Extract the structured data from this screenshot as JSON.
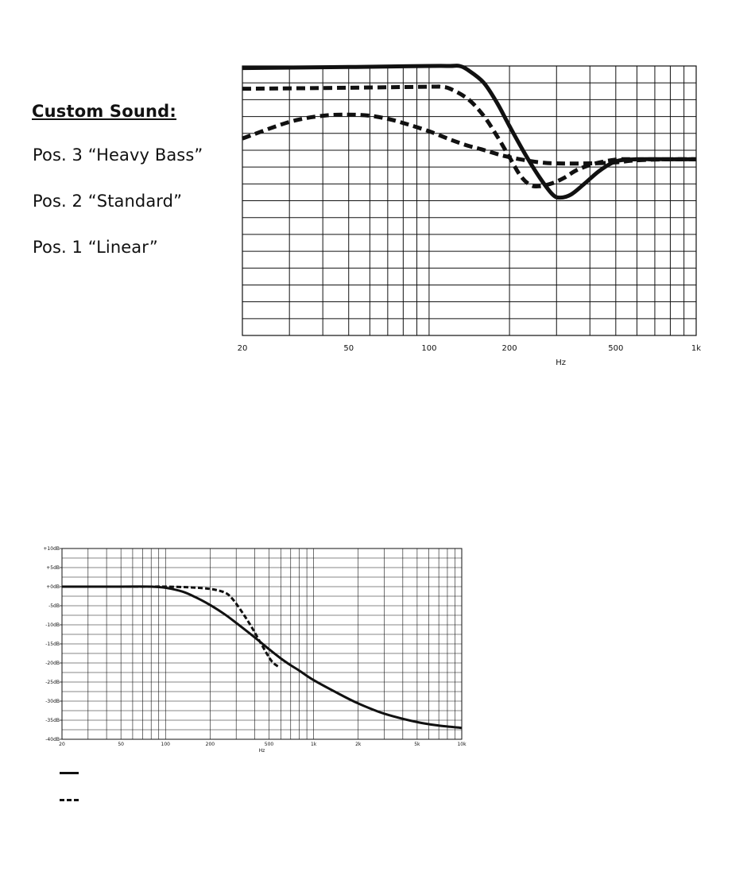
{
  "legend": {
    "title": "Custom Sound:",
    "entries": [
      "Pos. 3 “Heavy Bass”",
      "Pos. 2 “Standard”",
      "Pos. 1 “Linear”"
    ]
  },
  "chart_data": [
    {
      "type": "line",
      "xscale": "log",
      "xlim": [
        20,
        1000
      ],
      "ylim": [
        0,
        13
      ],
      "xticks": [
        20,
        50,
        100,
        200,
        500,
        1000
      ],
      "xtick_labels": [
        "20",
        "50",
        "100",
        "200",
        "500",
        "1k"
      ],
      "xlabel": "Hz",
      "grid": true,
      "series": [
        {
          "style": "solid",
          "x": [
            20,
            50,
            100,
            120,
            130,
            140,
            160,
            180,
            200,
            230,
            260,
            290,
            310,
            340,
            380,
            430,
            480,
            520,
            600,
            800,
            1000
          ],
          "y": [
            12.9,
            12.95,
            13.0,
            13.0,
            13.0,
            12.8,
            12.2,
            11.2,
            10.1,
            8.7,
            7.6,
            6.8,
            6.65,
            6.8,
            7.3,
            7.9,
            8.3,
            8.45,
            8.5,
            8.5,
            8.5
          ]
        },
        {
          "style": "dashed",
          "x": [
            20,
            50,
            100,
            110,
            120,
            140,
            160,
            180,
            200,
            220,
            240,
            260,
            290,
            320,
            360,
            420,
            480,
            520,
            600,
            800,
            1000
          ],
          "y": [
            11.9,
            11.95,
            12.0,
            12.0,
            11.9,
            11.4,
            10.6,
            9.6,
            8.6,
            7.7,
            7.25,
            7.2,
            7.35,
            7.6,
            8.0,
            8.3,
            8.45,
            8.5,
            8.5,
            8.5,
            8.5
          ]
        },
        {
          "style": "dashed",
          "x": [
            20,
            30,
            40,
            50,
            60,
            70,
            80,
            100,
            120,
            140,
            160,
            180,
            200,
            230,
            260,
            300,
            400,
            500,
            600,
            800,
            1000
          ],
          "y": [
            9.5,
            10.3,
            10.6,
            10.65,
            10.6,
            10.45,
            10.25,
            9.85,
            9.45,
            9.15,
            8.95,
            8.75,
            8.6,
            8.45,
            8.35,
            8.3,
            8.3,
            8.35,
            8.45,
            8.5,
            8.5
          ]
        }
      ]
    },
    {
      "type": "line",
      "xscale": "log",
      "xlim": [
        20,
        10000
      ],
      "ylim": [
        -40,
        10
      ],
      "xticks": [
        20,
        50,
        100,
        200,
        500,
        1000,
        2000,
        5000,
        10000
      ],
      "xtick_labels": [
        "20",
        "50",
        "100",
        "200",
        "500",
        "1k",
        "2k",
        "5k",
        "10k"
      ],
      "yticks": [
        10,
        5,
        0,
        -5,
        -10,
        -15,
        -20,
        -25,
        -30,
        -35,
        -40
      ],
      "ytick_labels": [
        "+10dB",
        "+5dB",
        "+0dB",
        "-5dB",
        "-10dB",
        "-15dB",
        "-20dB",
        "-25dB",
        "-30dB",
        "-35dB",
        "-40dB"
      ],
      "xlabel": "Hz",
      "grid": true,
      "series": [
        {
          "style": "solid",
          "x": [
            20,
            50,
            80,
            100,
            130,
            160,
            200,
            250,
            300,
            400,
            500,
            600,
            700,
            800,
            1000,
            1500,
            2000,
            3000,
            5000,
            7000,
            10000
          ],
          "y": [
            0,
            0,
            0,
            -0.3,
            -1.3,
            -2.8,
            -4.8,
            -7.2,
            -9.5,
            -13.3,
            -16.4,
            -18.8,
            -20.6,
            -22.0,
            -24.5,
            -28.2,
            -30.6,
            -33.3,
            -35.5,
            -36.4,
            -37.0
          ]
        },
        {
          "style": "dashed",
          "x": [
            20,
            50,
            80,
            100,
            150,
            200,
            250,
            280,
            320,
            380,
            450,
            520,
            580
          ],
          "y": [
            0,
            0,
            0,
            0,
            -0.2,
            -0.6,
            -1.5,
            -3.0,
            -6.0,
            -10.5,
            -15.5,
            -19.5,
            -21.0
          ]
        }
      ]
    }
  ]
}
